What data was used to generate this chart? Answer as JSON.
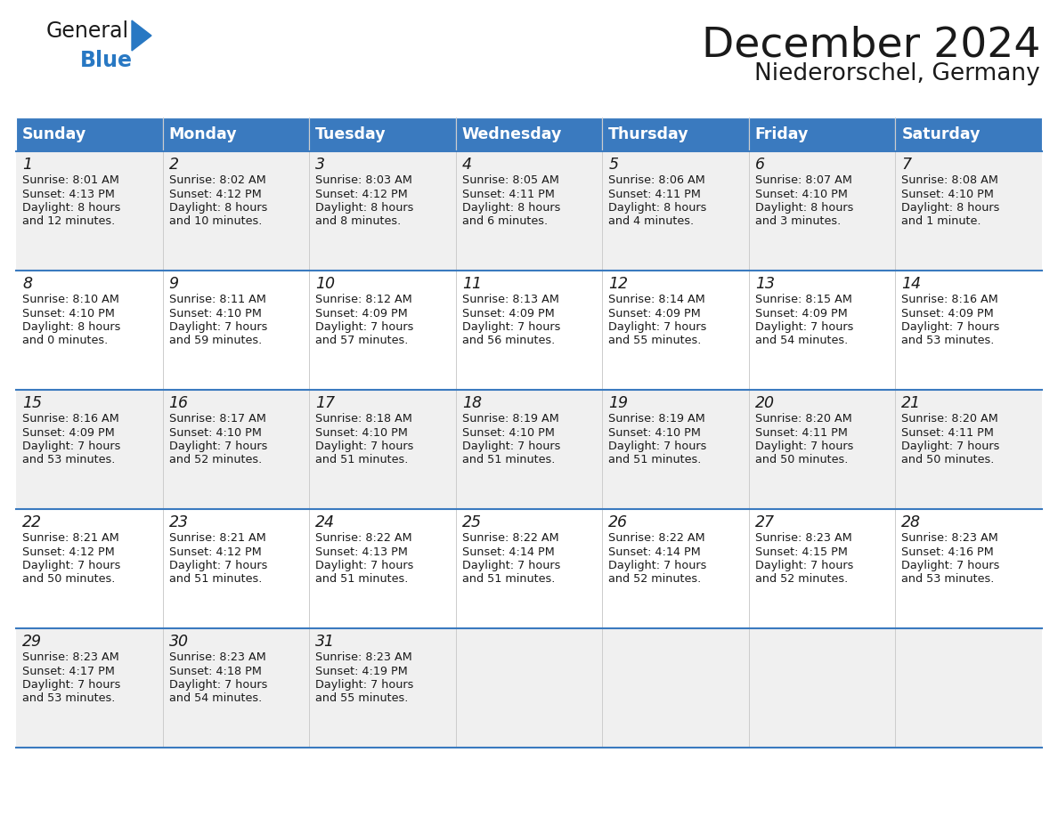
{
  "title": "December 2024",
  "subtitle": "Niederorschel, Germany",
  "header_color": "#3a7abf",
  "header_text_color": "#ffffff",
  "cell_bg_even": "#f0f0f0",
  "cell_bg_odd": "#ffffff",
  "separator_color": "#3a7abf",
  "text_color": "#1a1a1a",
  "day_headers": [
    "Sunday",
    "Monday",
    "Tuesday",
    "Wednesday",
    "Thursday",
    "Friday",
    "Saturday"
  ],
  "weeks": [
    [
      {
        "day": 1,
        "sunrise": "8:01 AM",
        "sunset": "4:13 PM",
        "daylight": "8 hours and 12 minutes."
      },
      {
        "day": 2,
        "sunrise": "8:02 AM",
        "sunset": "4:12 PM",
        "daylight": "8 hours and 10 minutes."
      },
      {
        "day": 3,
        "sunrise": "8:03 AM",
        "sunset": "4:12 PM",
        "daylight": "8 hours and 8 minutes."
      },
      {
        "day": 4,
        "sunrise": "8:05 AM",
        "sunset": "4:11 PM",
        "daylight": "8 hours and 6 minutes."
      },
      {
        "day": 5,
        "sunrise": "8:06 AM",
        "sunset": "4:11 PM",
        "daylight": "8 hours and 4 minutes."
      },
      {
        "day": 6,
        "sunrise": "8:07 AM",
        "sunset": "4:10 PM",
        "daylight": "8 hours and 3 minutes."
      },
      {
        "day": 7,
        "sunrise": "8:08 AM",
        "sunset": "4:10 PM",
        "daylight": "8 hours and 1 minute."
      }
    ],
    [
      {
        "day": 8,
        "sunrise": "8:10 AM",
        "sunset": "4:10 PM",
        "daylight": "8 hours and 0 minutes."
      },
      {
        "day": 9,
        "sunrise": "8:11 AM",
        "sunset": "4:10 PM",
        "daylight": "7 hours and 59 minutes."
      },
      {
        "day": 10,
        "sunrise": "8:12 AM",
        "sunset": "4:09 PM",
        "daylight": "7 hours and 57 minutes."
      },
      {
        "day": 11,
        "sunrise": "8:13 AM",
        "sunset": "4:09 PM",
        "daylight": "7 hours and 56 minutes."
      },
      {
        "day": 12,
        "sunrise": "8:14 AM",
        "sunset": "4:09 PM",
        "daylight": "7 hours and 55 minutes."
      },
      {
        "day": 13,
        "sunrise": "8:15 AM",
        "sunset": "4:09 PM",
        "daylight": "7 hours and 54 minutes."
      },
      {
        "day": 14,
        "sunrise": "8:16 AM",
        "sunset": "4:09 PM",
        "daylight": "7 hours and 53 minutes."
      }
    ],
    [
      {
        "day": 15,
        "sunrise": "8:16 AM",
        "sunset": "4:09 PM",
        "daylight": "7 hours and 53 minutes."
      },
      {
        "day": 16,
        "sunrise": "8:17 AM",
        "sunset": "4:10 PM",
        "daylight": "7 hours and 52 minutes."
      },
      {
        "day": 17,
        "sunrise": "8:18 AM",
        "sunset": "4:10 PM",
        "daylight": "7 hours and 51 minutes."
      },
      {
        "day": 18,
        "sunrise": "8:19 AM",
        "sunset": "4:10 PM",
        "daylight": "7 hours and 51 minutes."
      },
      {
        "day": 19,
        "sunrise": "8:19 AM",
        "sunset": "4:10 PM",
        "daylight": "7 hours and 51 minutes."
      },
      {
        "day": 20,
        "sunrise": "8:20 AM",
        "sunset": "4:11 PM",
        "daylight": "7 hours and 50 minutes."
      },
      {
        "day": 21,
        "sunrise": "8:20 AM",
        "sunset": "4:11 PM",
        "daylight": "7 hours and 50 minutes."
      }
    ],
    [
      {
        "day": 22,
        "sunrise": "8:21 AM",
        "sunset": "4:12 PM",
        "daylight": "7 hours and 50 minutes."
      },
      {
        "day": 23,
        "sunrise": "8:21 AM",
        "sunset": "4:12 PM",
        "daylight": "7 hours and 51 minutes."
      },
      {
        "day": 24,
        "sunrise": "8:22 AM",
        "sunset": "4:13 PM",
        "daylight": "7 hours and 51 minutes."
      },
      {
        "day": 25,
        "sunrise": "8:22 AM",
        "sunset": "4:14 PM",
        "daylight": "7 hours and 51 minutes."
      },
      {
        "day": 26,
        "sunrise": "8:22 AM",
        "sunset": "4:14 PM",
        "daylight": "7 hours and 52 minutes."
      },
      {
        "day": 27,
        "sunrise": "8:23 AM",
        "sunset": "4:15 PM",
        "daylight": "7 hours and 52 minutes."
      },
      {
        "day": 28,
        "sunrise": "8:23 AM",
        "sunset": "4:16 PM",
        "daylight": "7 hours and 53 minutes."
      }
    ],
    [
      {
        "day": 29,
        "sunrise": "8:23 AM",
        "sunset": "4:17 PM",
        "daylight": "7 hours and 53 minutes."
      },
      {
        "day": 30,
        "sunrise": "8:23 AM",
        "sunset": "4:18 PM",
        "daylight": "7 hours and 54 minutes."
      },
      {
        "day": 31,
        "sunrise": "8:23 AM",
        "sunset": "4:19 PM",
        "daylight": "7 hours and 55 minutes."
      },
      null,
      null,
      null,
      null
    ]
  ],
  "logo_general_color": "#1a1a1a",
  "logo_blue_color": "#2878c3",
  "logo_triangle_color": "#2878c3"
}
